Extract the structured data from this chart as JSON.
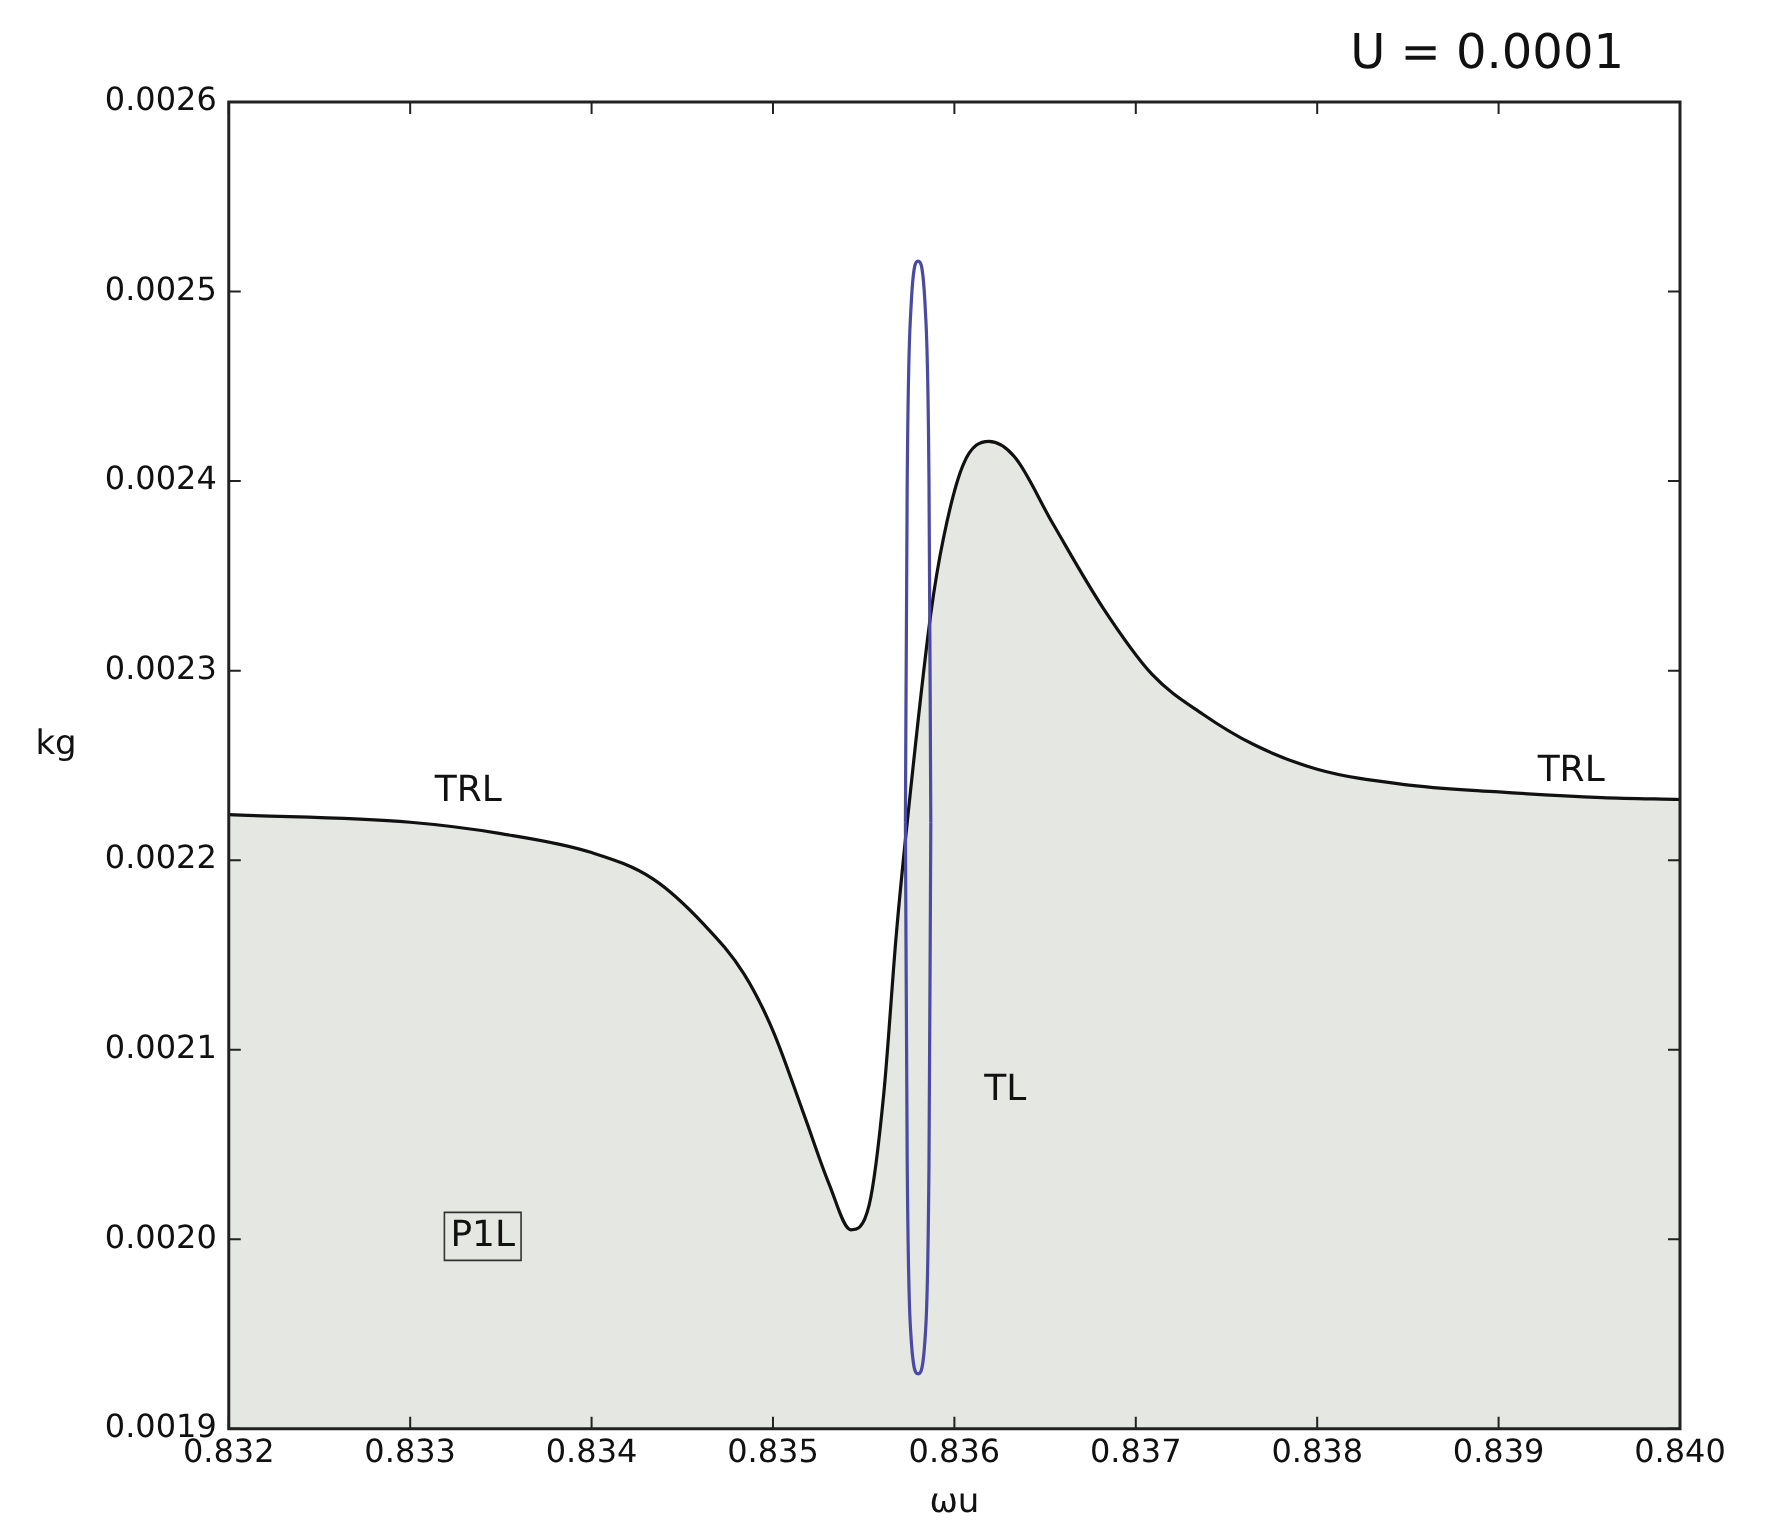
{
  "chart_data": {
    "type": "area",
    "title": "U = 0.0001",
    "xlabel": "ωu",
    "ylabel": "kg",
    "xlim": [
      0.832,
      0.84
    ],
    "xticks": [
      0.832,
      0.833,
      0.834,
      0.835,
      0.836,
      0.837,
      0.838,
      0.839,
      {
        "value": 0.84,
        "label": "0.840"
      }
    ],
    "ylim": [
      0.0019,
      0.0026
    ],
    "yticks": [
      0.0019,
      {
        "value": 0.002,
        "label": "0.0020"
      },
      0.0021,
      0.0022,
      0.0023,
      0.0024,
      0.0025,
      0.0026
    ],
    "series": [
      {
        "color": "#111111",
        "x": [
          0.832,
          0.833,
          0.8335,
          0.834,
          0.83434,
          0.83462,
          0.83484,
          0.835,
          0.83517,
          0.83531,
          0.83543,
          0.83553,
          0.83561,
          0.83568,
          0.83574,
          0.83587,
          0.83594,
          0.83605,
          0.83619,
          0.83633,
          0.83654,
          0.83682,
          0.83709,
          0.83737,
          0.83765,
          0.838,
          0.83847,
          0.839,
          0.83957,
          0.84
        ],
        "values": [
          0.002224,
          0.00222,
          0.002214,
          0.002204,
          0.00219,
          0.002166,
          0.00214,
          0.00211,
          0.002066,
          0.002029,
          0.002005,
          0.002018,
          0.002076,
          0.002161,
          0.00222,
          0.00233,
          0.00237,
          0.002409,
          0.002421,
          0.002413,
          0.002378,
          0.002333,
          0.002298,
          0.002277,
          0.002261,
          0.002248,
          0.00224,
          0.002236,
          0.002233,
          0.002232
        ]
      },
      {
        "type": "line",
        "color": "#4a4aa0",
        "x": [
          0.83573,
          0.83574,
          0.83576,
          0.8358,
          0.83584,
          0.83586,
          0.83587
        ],
        "values": [
          0.00222,
          0.0024,
          0.00249,
          0.002516,
          0.00249,
          0.0024,
          0.00222
        ]
      },
      {
        "type": "line",
        "color": "#4a4aa0",
        "x": [
          0.83573,
          0.83574,
          0.83576,
          0.8358,
          0.83584,
          0.83586,
          0.83587
        ],
        "values": [
          0.00222,
          0.00204,
          0.00195,
          0.001929,
          0.00195,
          0.00204,
          0.00222
        ]
      }
    ],
    "annotations": [
      "TRL",
      "TRL",
      "TL",
      "P1L"
    ]
  }
}
